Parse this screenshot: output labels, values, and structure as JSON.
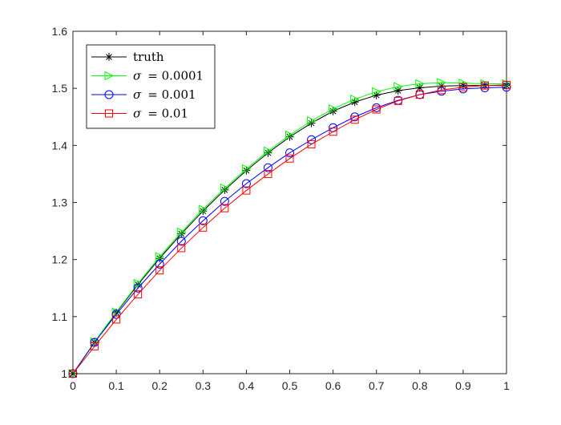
{
  "chart_data": {
    "type": "line",
    "title": "",
    "xlabel": "",
    "ylabel": "",
    "xlim": [
      0,
      1
    ],
    "ylim": [
      1,
      1.6
    ],
    "xticks": [
      0,
      0.1,
      0.2,
      0.3,
      0.4,
      0.5,
      0.6,
      0.7,
      0.8,
      0.9,
      1
    ],
    "xtick_labels": [
      "0",
      "0.1",
      "0.2",
      "0.3",
      "0.4",
      "0.5",
      "0.6",
      "0.7",
      "0.8",
      "0.9",
      "1"
    ],
    "yticks": [
      1,
      1.1,
      1.2,
      1.3,
      1.4,
      1.5,
      1.6
    ],
    "ytick_labels": [
      "1",
      "1.1",
      "1.2",
      "1.3",
      "1.4",
      "1.5",
      "1.6"
    ],
    "grid": false,
    "legend_position": "top-left",
    "x": [
      0,
      0.05,
      0.1,
      0.15,
      0.2,
      0.25,
      0.3,
      0.35,
      0.4,
      0.45,
      0.5,
      0.55,
      0.6,
      0.65,
      0.7,
      0.75,
      0.8,
      0.85,
      0.9,
      0.95,
      1
    ],
    "series": [
      {
        "name": "truth",
        "legend_prefix": "",
        "legend_value": "truth",
        "color": "#000000",
        "marker": "asterisk",
        "values": [
          1.0,
          1.055,
          1.107,
          1.156,
          1.202,
          1.245,
          1.285,
          1.322,
          1.356,
          1.387,
          1.415,
          1.439,
          1.46,
          1.476,
          1.488,
          1.496,
          1.501,
          1.504,
          1.505,
          1.505,
          1.505
        ]
      },
      {
        "name": "σ = 0.0001",
        "legend_prefix": "σ",
        "legend_value": "= 0.0001",
        "color": "#00ff00",
        "marker": "triangle-right",
        "values": [
          1.0,
          1.056,
          1.108,
          1.158,
          1.205,
          1.248,
          1.288,
          1.325,
          1.359,
          1.39,
          1.418,
          1.443,
          1.464,
          1.481,
          1.494,
          1.503,
          1.508,
          1.51,
          1.509,
          1.508,
          1.508
        ]
      },
      {
        "name": "σ = 0.001",
        "legend_prefix": "σ",
        "legend_value": "= 0.001",
        "color": "#0000ff",
        "marker": "circle",
        "values": [
          1.0,
          1.055,
          1.104,
          1.15,
          1.192,
          1.232,
          1.268,
          1.302,
          1.333,
          1.361,
          1.387,
          1.41,
          1.431,
          1.45,
          1.466,
          1.479,
          1.489,
          1.495,
          1.499,
          1.501,
          1.502
        ]
      },
      {
        "name": "σ = 0.01",
        "legend_prefix": "σ",
        "legend_value": "= 0.01",
        "color": "#ff0000",
        "marker": "square",
        "values": [
          1.0,
          1.048,
          1.095,
          1.139,
          1.181,
          1.22,
          1.256,
          1.29,
          1.321,
          1.35,
          1.377,
          1.402,
          1.424,
          1.445,
          1.463,
          1.478,
          1.489,
          1.497,
          1.502,
          1.505,
          1.506
        ]
      }
    ]
  }
}
